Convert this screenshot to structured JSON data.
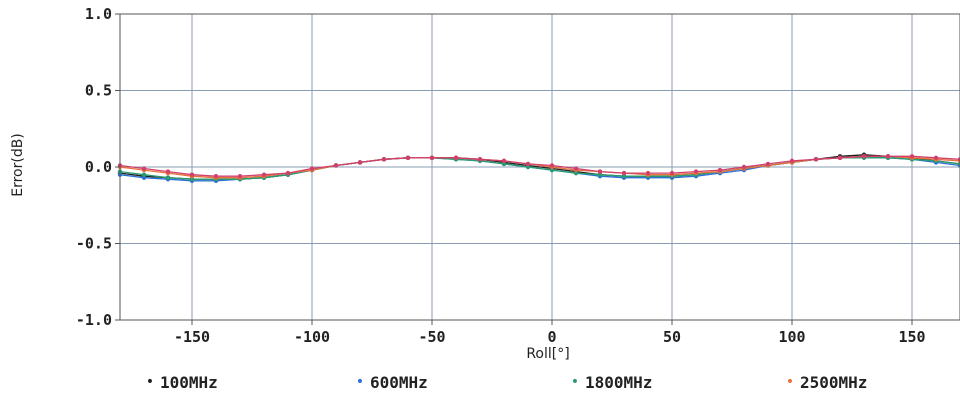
{
  "chart_data": {
    "type": "line",
    "xlabel": "Roll[°]",
    "ylabel": "Error(dB)",
    "xlim": [
      -180,
      170
    ],
    "ylim": [
      -1.0,
      1.0
    ],
    "x_ticks": [
      -150,
      -100,
      -50,
      0,
      50,
      100,
      150
    ],
    "x_tick_labels": [
      "-150",
      "-100",
      "-50",
      "0",
      "50",
      "100",
      "150"
    ],
    "y_ticks": [
      1.0,
      0.5,
      0.0,
      -0.5,
      -1.0
    ],
    "y_tick_labels": [
      "1.0",
      "0.5",
      "0.0",
      "-0.5",
      "-1.0"
    ],
    "grid": true,
    "legend_position": "bottom",
    "x": [
      -180,
      -170,
      -160,
      -150,
      -140,
      -130,
      -120,
      -110,
      -100,
      -90,
      -80,
      -70,
      -60,
      -50,
      -40,
      -30,
      -20,
      -10,
      0,
      10,
      20,
      30,
      40,
      50,
      60,
      70,
      80,
      90,
      100,
      110,
      120,
      130,
      140,
      150,
      160,
      170
    ],
    "series": [
      {
        "name": "100MHz",
        "color": "#222222",
        "values": [
          -0.04,
          -0.06,
          -0.07,
          -0.08,
          -0.08,
          -0.08,
          -0.07,
          -0.05,
          -0.02,
          0.01,
          0.03,
          0.05,
          0.06,
          0.06,
          0.06,
          0.05,
          0.03,
          0.01,
          -0.01,
          -0.03,
          -0.05,
          -0.06,
          -0.06,
          -0.06,
          -0.05,
          -0.03,
          -0.01,
          0.01,
          0.03,
          0.05,
          0.07,
          0.08,
          0.07,
          0.06,
          0.04,
          0.02
        ]
      },
      {
        "name": "600MHz",
        "color": "#2a6fd6",
        "values": [
          -0.05,
          -0.07,
          -0.08,
          -0.09,
          -0.09,
          -0.08,
          -0.07,
          -0.05,
          -0.02,
          0.01,
          0.03,
          0.05,
          0.06,
          0.06,
          0.05,
          0.04,
          0.02,
          0.0,
          -0.02,
          -0.04,
          -0.06,
          -0.07,
          -0.07,
          -0.07,
          -0.06,
          -0.04,
          -0.02,
          0.01,
          0.03,
          0.05,
          0.06,
          0.07,
          0.06,
          0.05,
          0.03,
          0.01
        ]
      },
      {
        "name": "1800MHz",
        "color": "#2a9d6f",
        "values": [
          -0.03,
          -0.05,
          -0.07,
          -0.08,
          -0.08,
          -0.08,
          -0.07,
          -0.05,
          -0.02,
          0.01,
          0.03,
          0.05,
          0.06,
          0.06,
          0.05,
          0.04,
          0.02,
          0.0,
          -0.02,
          -0.04,
          -0.05,
          -0.06,
          -0.06,
          -0.06,
          -0.05,
          -0.03,
          -0.01,
          0.01,
          0.03,
          0.05,
          0.06,
          0.06,
          0.06,
          0.05,
          0.04,
          0.02
        ]
      },
      {
        "name": "2500MHz",
        "color": "#e8703a",
        "values": [
          0.0,
          -0.02,
          -0.04,
          -0.06,
          -0.07,
          -0.07,
          -0.06,
          -0.04,
          -0.02,
          0.01,
          0.03,
          0.05,
          0.06,
          0.06,
          0.06,
          0.05,
          0.04,
          0.02,
          0.0,
          -0.02,
          -0.03,
          -0.04,
          -0.05,
          -0.05,
          -0.04,
          -0.03,
          -0.01,
          0.01,
          0.03,
          0.05,
          0.06,
          0.07,
          0.07,
          0.06,
          0.05,
          0.04
        ]
      },
      {
        "name": "",
        "color": "#d1406b",
        "values": [
          0.01,
          -0.01,
          -0.03,
          -0.05,
          -0.06,
          -0.06,
          -0.05,
          -0.04,
          -0.01,
          0.01,
          0.03,
          0.05,
          0.06,
          0.06,
          0.06,
          0.05,
          0.04,
          0.02,
          0.01,
          -0.01,
          -0.03,
          -0.04,
          -0.04,
          -0.04,
          -0.03,
          -0.02,
          0.0,
          0.02,
          0.04,
          0.05,
          0.06,
          0.07,
          0.07,
          0.07,
          0.06,
          0.05
        ]
      }
    ],
    "legend": [
      {
        "label": "100MHz",
        "color": "#222222"
      },
      {
        "label": "600MHz",
        "color": "#2a6fd6"
      },
      {
        "label": "1800MHz",
        "color": "#2a9d6f"
      },
      {
        "label": "2500MHz",
        "color": "#e8703a"
      }
    ]
  }
}
